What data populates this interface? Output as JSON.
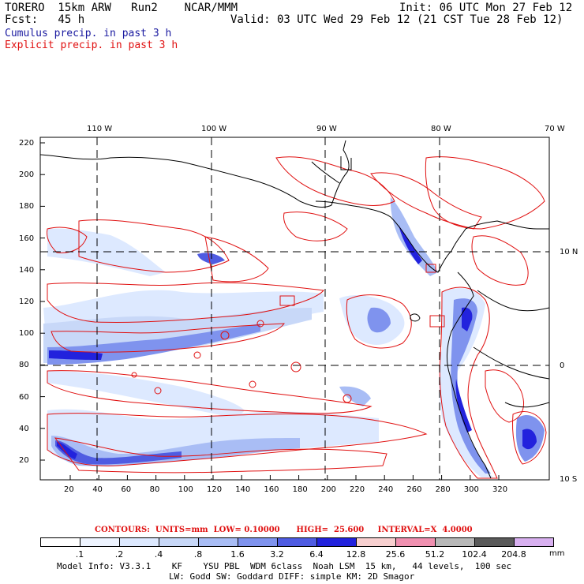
{
  "header": {
    "line1_left": "TORERO  15km ARW   Run2    NCAR/MMM",
    "line1_right": "Init: 06 UTC Mon 27 Feb 12",
    "line2_left": "Fcst:   45 h",
    "line2_right": "Valid: 03 UTC Wed 29 Feb 12 (21 CST Tue 28 Feb 12)",
    "legend_blue": "Cumulus precip. in past 3 h",
    "legend_red": "Explicit precip. in past 3 h"
  },
  "map": {
    "top_labels": [
      "110 W",
      "100 W",
      "90 W",
      "80 W",
      "70 W"
    ],
    "right_labels": [
      "10 N",
      "0",
      "10 S"
    ],
    "left_ticks": [
      "220",
      "200",
      "180",
      "160",
      "140",
      "120",
      "100",
      "80",
      "60",
      "40",
      "20"
    ],
    "bottom_ticks": [
      "20",
      "40",
      "60",
      "80",
      "100",
      "120",
      "140",
      "160",
      "180",
      "200",
      "220",
      "240",
      "260",
      "280",
      "300",
      "320"
    ],
    "colors": {
      "frame": "#000000",
      "coast": "#000000",
      "contour": "#e01010",
      "grid": "#000000"
    }
  },
  "contour_info": {
    "label": "CONTOURS:  UNITS=mm  LOW= 0.10000      HIGH=  25.600     INTERVAL=X  4.0000"
  },
  "colorbar": {
    "unit": "mm",
    "labels": [
      ".1",
      ".2",
      ".4",
      ".8",
      "1.6",
      "3.2",
      "6.4",
      "12.8",
      "25.6",
      "51.2",
      "102.4",
      "204.8"
    ],
    "colors": [
      "#ffffff",
      "#eef4ff",
      "#dde9ff",
      "#c8d8f8",
      "#a9bdf5",
      "#7f93ee",
      "#4f5ce2",
      "#2222dd",
      "#f8d0d0",
      "#f090b0",
      "#b8b8b8",
      "#5a5a5a",
      "#d8b0f0"
    ]
  },
  "footer": {
    "line1": "Model Info: V3.3.1    KF    YSU PBL  WDM 6class  Noah LSM  15 km,   44 levels,  100 sec",
    "line2": "LW: Godd SW: Goddard DIFF: simple KM: 2D Smagor"
  }
}
